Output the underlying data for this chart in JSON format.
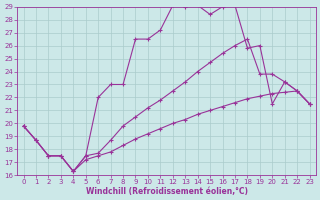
{
  "xlabel": "Windchill (Refroidissement éolien,°C)",
  "bg_color": "#cce8e8",
  "grid_color": "#aacccc",
  "line_color": "#993399",
  "xlim": [
    -0.5,
    23.5
  ],
  "ylim": [
    16,
    29
  ],
  "xticks": [
    0,
    1,
    2,
    3,
    4,
    5,
    6,
    7,
    8,
    9,
    10,
    11,
    12,
    13,
    14,
    15,
    16,
    17,
    18,
    19,
    20,
    21,
    22,
    23
  ],
  "yticks": [
    16,
    17,
    18,
    19,
    20,
    21,
    22,
    23,
    24,
    25,
    26,
    27,
    28,
    29
  ],
  "line1_x": [
    0,
    1,
    2,
    3,
    4,
    5,
    6,
    7,
    8,
    9,
    10,
    11,
    12,
    13,
    14,
    15,
    16,
    17,
    18,
    19,
    20,
    21,
    22,
    23
  ],
  "line1_y": [
    19.8,
    18.7,
    17.5,
    17.5,
    16.3,
    17.5,
    22.0,
    23.0,
    23.0,
    26.5,
    26.5,
    27.2,
    29.1,
    29.0,
    29.1,
    28.4,
    29.0,
    29.1,
    25.8,
    26.0,
    21.5,
    23.2,
    22.5,
    21.5
  ],
  "line1_markers_x": [
    0,
    1,
    2,
    3,
    4,
    5,
    6,
    8,
    10,
    11,
    12,
    13,
    14,
    15,
    16,
    17,
    18,
    19,
    20,
    21,
    22,
    23
  ],
  "line2_x": [
    0,
    1,
    2,
    3,
    4,
    5,
    6,
    7,
    8,
    9,
    10,
    11,
    12,
    13,
    14,
    15,
    16,
    17,
    18,
    19,
    20,
    21,
    22,
    23
  ],
  "line2_y": [
    19.8,
    18.7,
    17.5,
    17.5,
    16.3,
    17.5,
    17.7,
    18.7,
    19.8,
    20.5,
    21.2,
    21.8,
    22.5,
    23.2,
    24.0,
    24.7,
    25.4,
    26.0,
    26.5,
    23.8,
    23.8,
    23.2,
    22.5,
    21.5
  ],
  "line3_x": [
    0,
    1,
    2,
    3,
    4,
    5,
    6,
    7,
    8,
    9,
    10,
    11,
    12,
    13,
    14,
    15,
    16,
    17,
    18,
    19,
    20,
    21,
    22,
    23
  ],
  "line3_y": [
    19.8,
    18.7,
    17.5,
    17.5,
    16.3,
    17.2,
    17.5,
    17.8,
    18.3,
    18.8,
    19.2,
    19.6,
    20.0,
    20.3,
    20.7,
    21.0,
    21.3,
    21.6,
    21.9,
    22.1,
    22.3,
    22.4,
    22.5,
    21.5
  ]
}
